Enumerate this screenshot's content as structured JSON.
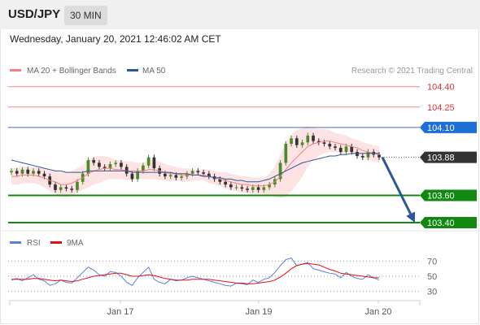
{
  "header": {
    "symbol": "USD/JPY",
    "interval": "30 MIN",
    "timestamp": "Wednesday, January 20, 2021 12:46:02 AM CET"
  },
  "colors": {
    "bollinger": "#f08080",
    "bollinger_fill": "#fde3e3",
    "ma50": "#2b579a",
    "resistance": "#e8898b",
    "pivot_line": "#3b6fc4",
    "pivot_badge": "#1d6fd6",
    "support": "#118811",
    "last_price_badge": "#333333",
    "arrow": "#2b579a",
    "rsi": "#5b7fd6",
    "rsi_ma": "#e01010",
    "candle_up": "#4a8a2a",
    "candle_down": "#333333"
  },
  "legend": {
    "bollinger_label": "MA 20 + Bollinger Bands",
    "ma50_label": "MA 50",
    "copyright": "Research © 2021 Trading Central",
    "rsi_label": "RSI",
    "rsi_ma_label": "9MA"
  },
  "chart_data": {
    "type": "candlestick",
    "price_axis": {
      "min": 103.34,
      "max": 104.47
    },
    "levels": [
      {
        "value": 104.4,
        "label": "104.40",
        "kind": "resistance"
      },
      {
        "value": 104.25,
        "label": "104.25",
        "kind": "resistance"
      },
      {
        "value": 104.1,
        "label": "104.10",
        "kind": "pivot"
      },
      {
        "value": 103.88,
        "label": "103.88",
        "kind": "last"
      },
      {
        "value": 103.6,
        "label": "103.60",
        "kind": "support"
      },
      {
        "value": 103.4,
        "label": "103.40",
        "kind": "support"
      }
    ],
    "x_ticks": [
      "Jan 17",
      "Jan 19",
      "Jan 20"
    ],
    "close": [
      103.78,
      103.76,
      103.79,
      103.76,
      103.78,
      103.76,
      103.74,
      103.68,
      103.64,
      103.66,
      103.65,
      103.64,
      103.7,
      103.76,
      103.86,
      103.84,
      103.81,
      103.8,
      103.83,
      103.84,
      103.81,
      103.76,
      103.72,
      103.78,
      103.82,
      103.88,
      103.8,
      103.76,
      103.74,
      103.75,
      103.73,
      103.74,
      103.76,
      103.78,
      103.77,
      103.76,
      103.74,
      103.72,
      103.7,
      103.68,
      103.66,
      103.66,
      103.65,
      103.64,
      103.66,
      103.64,
      103.66,
      103.68,
      103.72,
      103.84,
      103.98,
      104.02,
      103.97,
      103.99,
      104.04,
      104.0,
      103.99,
      103.98,
      103.96,
      103.95,
      103.92,
      103.96,
      103.92,
      103.89,
      103.88,
      103.92,
      103.9,
      103.88
    ],
    "ma20": [
      103.74,
      103.74,
      103.75,
      103.75,
      103.75,
      103.74,
      103.73,
      103.71,
      103.7,
      103.68,
      103.68,
      103.69,
      103.71,
      103.73,
      103.76,
      103.78,
      103.79,
      103.8,
      103.8,
      103.79,
      103.79,
      103.78,
      103.78,
      103.78,
      103.78,
      103.79,
      103.79,
      103.78,
      103.77,
      103.76,
      103.76,
      103.75,
      103.75,
      103.75,
      103.75,
      103.75,
      103.74,
      103.73,
      103.72,
      103.71,
      103.7,
      103.69,
      103.68,
      103.68,
      103.67,
      103.67,
      103.67,
      103.68,
      103.7,
      103.74,
      103.79,
      103.84,
      103.88,
      103.92,
      103.96,
      103.98,
      103.99,
      104.0,
      104.0,
      103.99,
      103.98,
      103.97,
      103.96,
      103.95,
      103.93,
      103.92,
      103.91,
      103.9
    ],
    "bb_width": [
      0.06,
      0.06,
      0.06,
      0.06,
      0.06,
      0.06,
      0.07,
      0.08,
      0.09,
      0.09,
      0.09,
      0.09,
      0.09,
      0.09,
      0.1,
      0.1,
      0.1,
      0.09,
      0.08,
      0.07,
      0.07,
      0.07,
      0.07,
      0.06,
      0.06,
      0.07,
      0.07,
      0.07,
      0.06,
      0.06,
      0.05,
      0.05,
      0.05,
      0.04,
      0.04,
      0.04,
      0.05,
      0.05,
      0.05,
      0.06,
      0.06,
      0.06,
      0.06,
      0.06,
      0.06,
      0.06,
      0.06,
      0.08,
      0.11,
      0.16,
      0.2,
      0.21,
      0.2,
      0.18,
      0.15,
      0.12,
      0.1,
      0.09,
      0.08,
      0.07,
      0.07,
      0.07,
      0.06,
      0.06,
      0.06,
      0.06,
      0.06,
      0.06
    ],
    "ma50": [
      103.86,
      103.85,
      103.84,
      103.83,
      103.82,
      103.81,
      103.8,
      103.79,
      103.78,
      103.78,
      103.77,
      103.77,
      103.77,
      103.77,
      103.78,
      103.78,
      103.78,
      103.78,
      103.78,
      103.78,
      103.78,
      103.78,
      103.77,
      103.77,
      103.77,
      103.77,
      103.77,
      103.77,
      103.77,
      103.77,
      103.76,
      103.76,
      103.76,
      103.75,
      103.75,
      103.74,
      103.74,
      103.73,
      103.73,
      103.72,
      103.72,
      103.71,
      103.71,
      103.7,
      103.7,
      103.7,
      103.71,
      103.72,
      103.74,
      103.76,
      103.78,
      103.8,
      103.82,
      103.84,
      103.85,
      103.86,
      103.87,
      103.88,
      103.89,
      103.89,
      103.9,
      103.9,
      103.91,
      103.91,
      103.91,
      103.91,
      103.91,
      103.91
    ],
    "projection": {
      "from": 103.88,
      "to": 103.4
    },
    "rsi": {
      "ticks": [
        70,
        50,
        30
      ],
      "min": 20,
      "max": 80,
      "values": [
        45,
        47,
        44,
        48,
        52,
        46,
        44,
        38,
        40,
        45,
        42,
        41,
        48,
        55,
        62,
        58,
        52,
        50,
        56,
        55,
        50,
        42,
        38,
        48,
        55,
        62,
        46,
        42,
        40,
        46,
        44,
        45,
        48,
        50,
        48,
        46,
        44,
        42,
        40,
        38,
        37,
        41,
        40,
        39,
        45,
        42,
        46,
        48,
        55,
        64,
        72,
        74,
        64,
        66,
        68,
        60,
        58,
        56,
        54,
        53,
        48,
        55,
        50,
        47,
        46,
        52,
        48,
        45
      ],
      "ma9": [
        46,
        46,
        46,
        46,
        47,
        47,
        46,
        45,
        44,
        45,
        44,
        43,
        44,
        46,
        48,
        50,
        51,
        52,
        53,
        54,
        54,
        52,
        50,
        50,
        51,
        52,
        51,
        49,
        47,
        46,
        45,
        45,
        45,
        46,
        46,
        46,
        46,
        45,
        44,
        43,
        42,
        41,
        41,
        40,
        40,
        41,
        42,
        43,
        45,
        49,
        54,
        60,
        64,
        66,
        67,
        66,
        65,
        62,
        59,
        57,
        54,
        53,
        52,
        51,
        50,
        49,
        48,
        48
      ]
    }
  }
}
